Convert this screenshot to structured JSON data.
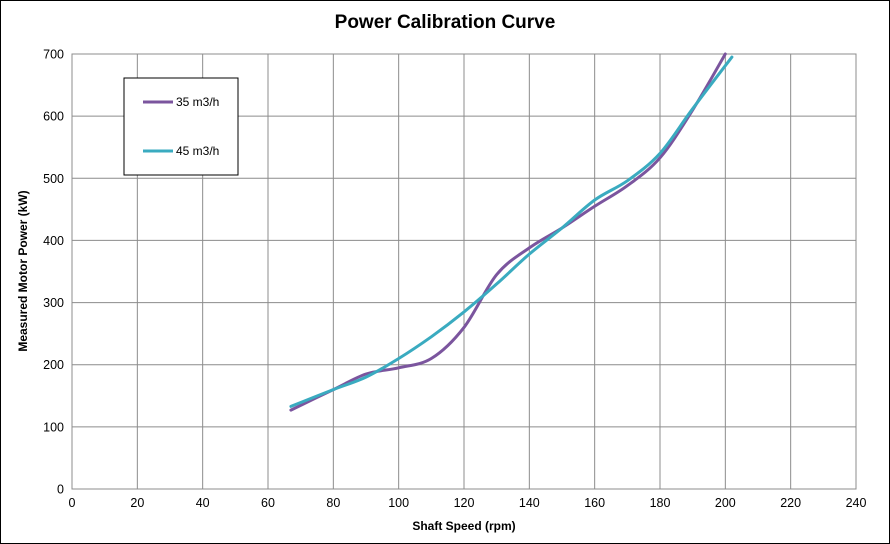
{
  "chart_data": {
    "type": "line",
    "title": "Power Calibration Curve",
    "xlabel": "Shaft Speed (rpm)",
    "ylabel": "Measured Motor Power (kW)",
    "xlim": [
      0,
      240
    ],
    "ylim": [
      0,
      700
    ],
    "x_ticks": [
      0,
      20,
      40,
      60,
      80,
      100,
      120,
      140,
      160,
      180,
      200,
      220,
      240
    ],
    "y_ticks": [
      0,
      100,
      200,
      300,
      400,
      500,
      600,
      700
    ],
    "grid": true,
    "legend_position": "top-left",
    "series": [
      {
        "name": "35 m3/h",
        "color": "#7B559E",
        "points": [
          [
            67,
            127
          ],
          [
            80,
            160
          ],
          [
            90,
            185
          ],
          [
            100,
            195
          ],
          [
            110,
            210
          ],
          [
            120,
            260
          ],
          [
            130,
            345
          ],
          [
            140,
            388
          ],
          [
            150,
            420
          ],
          [
            160,
            455
          ],
          [
            170,
            488
          ],
          [
            180,
            533
          ],
          [
            190,
            610
          ],
          [
            200,
            700
          ]
        ]
      },
      {
        "name": "45 m3/h",
        "color": "#3AABC0",
        "points": [
          [
            67,
            133
          ],
          [
            80,
            160
          ],
          [
            90,
            180
          ],
          [
            100,
            210
          ],
          [
            110,
            245
          ],
          [
            120,
            285
          ],
          [
            130,
            330
          ],
          [
            140,
            378
          ],
          [
            150,
            420
          ],
          [
            160,
            465
          ],
          [
            170,
            496
          ],
          [
            180,
            540
          ],
          [
            190,
            612
          ],
          [
            202,
            695
          ]
        ]
      }
    ]
  }
}
